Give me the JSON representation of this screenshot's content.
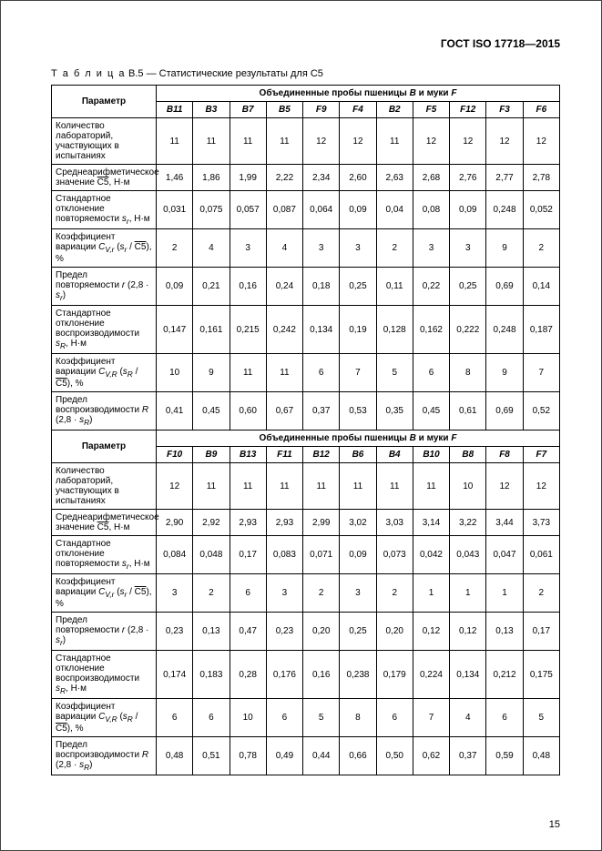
{
  "doc_header": "ГОСТ ISO 17718—2015",
  "table_caption_prefix": "Т а б л и ц а",
  "table_caption_rest": " В.5 — Статистические результаты для С5",
  "group_header": "Объединенные пробы пшеницы B и муки F",
  "param_header": "Параметр",
  "page_number": "15",
  "section1": {
    "cols": [
      "B11",
      "B3",
      "B7",
      "B5",
      "F9",
      "F4",
      "B2",
      "F5",
      "F12",
      "F3",
      "F6"
    ],
    "rows": [
      {
        "label": "Количество лабораторий, участвующих в испытаниях",
        "vals": [
          "11",
          "11",
          "11",
          "11",
          "12",
          "12",
          "11",
          "12",
          "12",
          "12",
          "12"
        ]
      },
      {
        "label": "Среднеарифметическое значение C5, Н·м",
        "ovl": true,
        "vals": [
          "1,46",
          "1,86",
          "1,99",
          "2,22",
          "2,34",
          "2,60",
          "2,63",
          "2,68",
          "2,76",
          "2,77",
          "2,78"
        ]
      },
      {
        "label": "Стандартное отклонение повторяемости sᵣ, Н·м",
        "vals": [
          "0,031",
          "0,075",
          "0,057",
          "0,087",
          "0,064",
          "0,09",
          "0,04",
          "0,08",
          "0,09",
          "0,248",
          "0,052"
        ]
      },
      {
        "label": "Коэффициент вариации Cᵥ,ᵣ (sᵣ / C5), %",
        "ovl": true,
        "vals": [
          "2",
          "4",
          "3",
          "4",
          "3",
          "3",
          "2",
          "3",
          "3",
          "9",
          "2"
        ]
      },
      {
        "label": "Предел повторяемости r (2,8 · sᵣ)",
        "vals": [
          "0,09",
          "0,21",
          "0,16",
          "0,24",
          "0,18",
          "0,25",
          "0,11",
          "0,22",
          "0,25",
          "0,69",
          "0,14"
        ]
      },
      {
        "label": "Стандартное отклонение воспроизводимости s_R, Н·м",
        "vals": [
          "0,147",
          "0,161",
          "0,215",
          "0,242",
          "0,134",
          "0,19",
          "0,128",
          "0,162",
          "0,222",
          "0,248",
          "0,187"
        ]
      },
      {
        "label": "Коэффициент вариации Cᵥ,R (s_R / C5), %",
        "ovl": true,
        "vals": [
          "10",
          "9",
          "11",
          "11",
          "6",
          "7",
          "5",
          "6",
          "8",
          "9",
          "7"
        ]
      },
      {
        "label": "Предел воспроизводимости R (2,8 · s_R)",
        "vals": [
          "0,41",
          "0,45",
          "0,60",
          "0,67",
          "0,37",
          "0,53",
          "0,35",
          "0,45",
          "0,61",
          "0,69",
          "0,52"
        ]
      }
    ]
  },
  "section2": {
    "cols": [
      "F10",
      "B9",
      "B13",
      "F11",
      "B12",
      "B6",
      "B4",
      "B10",
      "B8",
      "F8",
      "F7"
    ],
    "rows": [
      {
        "label": "Количество лабораторий, участвующих в испытаниях",
        "vals": [
          "12",
          "11",
          "11",
          "11",
          "11",
          "11",
          "11",
          "11",
          "10",
          "12",
          "12"
        ]
      },
      {
        "label": "Среднеарифметическое значение C5, Н·м",
        "ovl": true,
        "vals": [
          "2,90",
          "2,92",
          "2,93",
          "2,93",
          "2,99",
          "3,02",
          "3,03",
          "3,14",
          "3,22",
          "3,44",
          "3,73"
        ]
      },
      {
        "label": "Стандартное отклонение повторяемости sᵣ, Н·м",
        "vals": [
          "0,084",
          "0,048",
          "0,17",
          "0,083",
          "0,071",
          "0,09",
          "0,073",
          "0,042",
          "0,043",
          "0,047",
          "0,061"
        ]
      },
      {
        "label": "Коэффициент вариации Cᵥ,ᵣ (sᵣ / C5), %",
        "ovl": true,
        "vals": [
          "3",
          "2",
          "6",
          "3",
          "2",
          "3",
          "2",
          "1",
          "1",
          "1",
          "2"
        ]
      },
      {
        "label": "Предел повторяемости r (2,8 · sᵣ)",
        "vals": [
          "0,23",
          "0,13",
          "0,47",
          "0,23",
          "0,20",
          "0,25",
          "0,20",
          "0,12",
          "0,12",
          "0,13",
          "0,17"
        ]
      },
      {
        "label": "Стандартное отклонение воспроизводимости s_R, Н·м",
        "vals": [
          "0,174",
          "0,183",
          "0,28",
          "0,176",
          "0,16",
          "0,238",
          "0,179",
          "0,224",
          "0,134",
          "0,212",
          "0,175"
        ]
      },
      {
        "label": "Коэффициент вариации Cᵥ,R (s_R / C5), %",
        "ovl": true,
        "vals": [
          "6",
          "6",
          "10",
          "6",
          "5",
          "8",
          "6",
          "7",
          "4",
          "6",
          "5"
        ]
      },
      {
        "label": "Предел воспроизводимости R (2,8 · s_R)",
        "vals": [
          "0,48",
          "0,51",
          "0,78",
          "0,49",
          "0,44",
          "0,66",
          "0,50",
          "0,62",
          "0,37",
          "0,59",
          "0,48"
        ]
      }
    ]
  }
}
